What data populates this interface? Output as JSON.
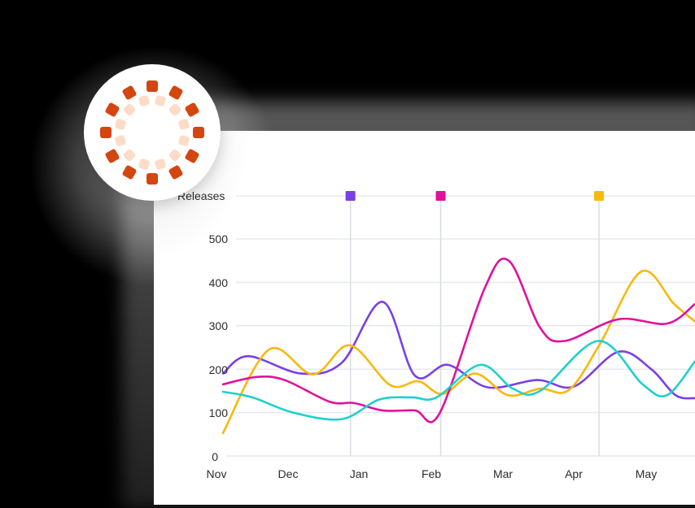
{
  "badge": {
    "icon": "circular-dots-spinner-icon",
    "colors": {
      "outer": "#d4460f",
      "inner": "#fcdcc6"
    }
  },
  "chart_data": {
    "type": "line",
    "title": "",
    "xlabel": "",
    "ylabel": "Releases",
    "categories": [
      "Nov",
      "Dec",
      "Jan",
      "Feb",
      "Mar",
      "Apr",
      "May"
    ],
    "ylim": [
      0,
      500
    ],
    "yticks": [
      0,
      100,
      200,
      300,
      400,
      500
    ],
    "grid": true,
    "legend": "none",
    "release_markers": [
      {
        "x": 1.78,
        "color": "#7b3fe4"
      },
      {
        "x": 3.04,
        "color": "#e0119d"
      },
      {
        "x": 5.25,
        "color": "#f7b90b"
      }
    ],
    "series": [
      {
        "name": "purple",
        "color": "#7b3fe4",
        "x": [
          0,
          0.35,
          1.09,
          1.66,
          2.23,
          2.68,
          3.14,
          3.7,
          4.39,
          4.9,
          5.52,
          5.98,
          6.32,
          6.59
        ],
        "values": [
          190,
          230,
          190,
          215,
          355,
          185,
          210,
          158,
          175,
          160,
          240,
          200,
          140,
          133
        ]
      },
      {
        "name": "yellow",
        "color": "#f7b90b",
        "x": [
          0,
          0.64,
          1.26,
          1.77,
          2.34,
          2.73,
          3.07,
          3.52,
          3.98,
          4.43,
          4.83,
          5.27,
          5.84,
          6.3,
          6.59
        ],
        "values": [
          53,
          245,
          188,
          255,
          163,
          172,
          143,
          190,
          140,
          155,
          152,
          260,
          425,
          350,
          310
        ]
      },
      {
        "name": "magenta",
        "color": "#e0119d",
        "x": [
          0,
          0.47,
          0.86,
          1.49,
          1.83,
          2.23,
          2.68,
          3.02,
          3.65,
          3.99,
          4.43,
          4.77,
          5.52,
          6.2,
          6.59
        ],
        "values": [
          165,
          182,
          175,
          125,
          122,
          105,
          105,
          97,
          385,
          450,
          295,
          265,
          315,
          305,
          350
        ]
      },
      {
        "name": "cyan",
        "color": "#1fd0cc",
        "x": [
          0,
          0.41,
          0.98,
          1.66,
          2.18,
          2.64,
          2.98,
          3.59,
          4.05,
          4.43,
          5.24,
          5.86,
          6.2,
          6.59
        ],
        "values": [
          148,
          135,
          100,
          85,
          130,
          135,
          135,
          210,
          155,
          150,
          265,
          165,
          140,
          218
        ]
      }
    ]
  },
  "axis": {
    "y_title": "Releases",
    "y_labels": [
      "500",
      "400",
      "300",
      "200",
      "100",
      "0"
    ],
    "x_labels": [
      "Nov",
      "Dec",
      "Jan",
      "Feb",
      "Mar",
      "Apr",
      "May"
    ]
  }
}
